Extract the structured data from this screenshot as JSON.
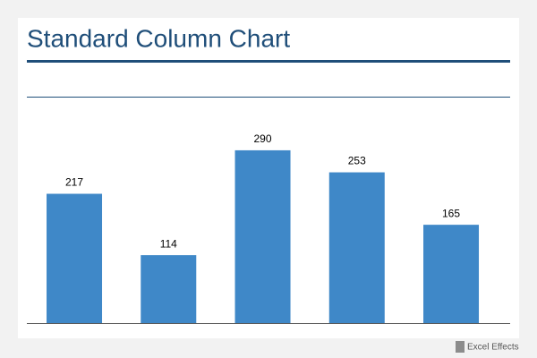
{
  "chart_data": {
    "type": "bar",
    "title": "Standard Column Chart",
    "categories": [
      null,
      null,
      null,
      null,
      null
    ],
    "values": [
      217,
      114,
      290,
      253,
      165
    ],
    "color": "#3f88c8",
    "ylim": [
      0,
      380
    ]
  },
  "watermark": "Excel Effects"
}
